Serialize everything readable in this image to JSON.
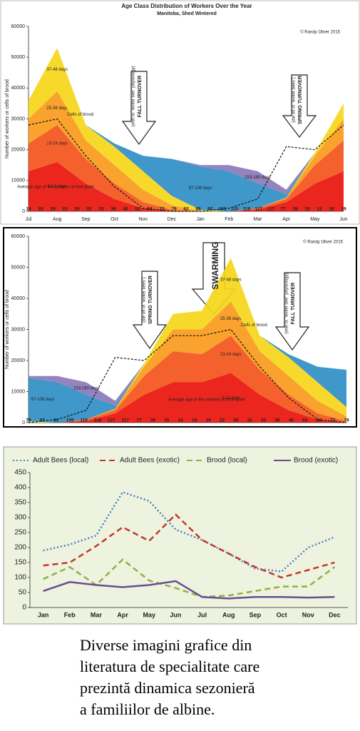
{
  "chart_data": [
    {
      "type": "area",
      "title": "Age Class Distribution of Workers Over the Year",
      "subtitle": "Manitoba, Shed Wintered",
      "copyright": "© Randy Oliver 2015",
      "ylabel": "Number of workers or cells of brood",
      "ylim": [
        0,
        60000
      ],
      "yticks": [
        0,
        10000,
        20000,
        30000,
        40000,
        50000,
        60000
      ],
      "categories": [
        "Jul",
        "Aug",
        "Sep",
        "Oct",
        "Nov",
        "Dec",
        "Jan",
        "Feb",
        "Mar",
        "Apr",
        "May",
        "Jun"
      ],
      "age_row": [
        19,
        20,
        19,
        22,
        26,
        32,
        33,
        36,
        40,
        52,
        64,
        73,
        79,
        82,
        88,
        92,
        103,
        110,
        118,
        127,
        117,
        77,
        38,
        15,
        13,
        18,
        19
      ],
      "series": [
        {
          "name": "0-12 days",
          "color": "#e8130c",
          "values": [
            13000,
            16000,
            9000,
            4000,
            1000,
            0,
            0,
            0,
            500,
            3000,
            9000,
            13000
          ]
        },
        {
          "name": "13-24 days",
          "color": "#f4541a",
          "values": [
            9000,
            12000,
            8000,
            5000,
            2000,
            500,
            0,
            0,
            500,
            1000,
            6000,
            10000
          ]
        },
        {
          "name": "25-36 days",
          "color": "#f99a1c",
          "values": [
            8000,
            11000,
            6000,
            6000,
            4000,
            1500,
            0,
            0,
            0,
            500,
            3000,
            7000
          ]
        },
        {
          "name": "37-48 days",
          "color": "#f6d61a",
          "values": [
            6000,
            14000,
            5000,
            6000,
            6000,
            3000,
            500,
            0,
            0,
            0,
            1000,
            5000
          ]
        },
        {
          "name": "97-108 days",
          "color": "#2f8fc4",
          "values": [
            0,
            0,
            0,
            1000,
            5000,
            12000,
            14000,
            13000,
            8000,
            1000,
            0,
            0
          ]
        },
        {
          "name": "153-180 days",
          "color": "#8a78b8",
          "values": [
            0,
            0,
            0,
            0,
            0,
            0,
            500,
            2000,
            4000,
            1500,
            0,
            0
          ]
        },
        {
          "name": "Cells of brood",
          "kind": "line",
          "color": "#111111",
          "values": [
            28000,
            30000,
            18000,
            8000,
            1000,
            0,
            0,
            1000,
            4000,
            21000,
            20000,
            28000
          ]
        }
      ],
      "annotations": [
        "FALL TURNOVER",
        "(shift to \"winter bee\" physiology)",
        "SPRING TURNOVER",
        "(die off of \"winter bees\")",
        "Average age of the workers at time point"
      ]
    },
    {
      "type": "area",
      "copyright": "© Randy Oliver 2015",
      "ylabel": "Number of workers or cells of brood",
      "ylim": [
        0,
        60000
      ],
      "yticks": [
        0,
        10000,
        20000,
        30000,
        40000,
        50000,
        60000
      ],
      "age_row": [
        79,
        82,
        92,
        105,
        110,
        118,
        127,
        117,
        77,
        38,
        15,
        16,
        18,
        19,
        22,
        26,
        32,
        33,
        36,
        40,
        52,
        64,
        73,
        79
      ],
      "series": [
        {
          "name": "0-12 days",
          "color": "#e8130c",
          "values": [
            0,
            0,
            500,
            3000,
            9000,
            13000,
            13000,
            16000,
            9000,
            4000,
            1000,
            0
          ]
        },
        {
          "name": "13-24 days",
          "color": "#f4541a",
          "values": [
            0,
            0,
            500,
            1000,
            6000,
            10000,
            9000,
            12000,
            8000,
            5000,
            2000,
            500
          ]
        },
        {
          "name": "25-36 days",
          "color": "#f99a1c",
          "values": [
            0,
            0,
            0,
            500,
            3000,
            7000,
            8000,
            11000,
            6000,
            6000,
            4000,
            1500
          ]
        },
        {
          "name": "37-48 days",
          "color": "#f6d61a",
          "values": [
            500,
            0,
            0,
            0,
            1000,
            5000,
            6000,
            14000,
            5000,
            6000,
            6000,
            3000
          ]
        },
        {
          "name": "97-108 days",
          "color": "#2f8fc4",
          "values": [
            14000,
            13000,
            8000,
            1000,
            0,
            0,
            0,
            0,
            0,
            1000,
            5000,
            12000
          ]
        },
        {
          "name": "153-180 days",
          "color": "#8a78b8",
          "values": [
            500,
            2000,
            4000,
            1500,
            0,
            0,
            0,
            0,
            0,
            0,
            0,
            0
          ]
        },
        {
          "name": "Cells of brood",
          "kind": "line",
          "color": "#111111",
          "values": [
            0,
            1000,
            4000,
            21000,
            20000,
            28000,
            28000,
            30000,
            18000,
            8000,
            1000,
            0
          ]
        }
      ],
      "annotations": [
        "SWARMING",
        "SPRING TURNOVER",
        "(die off of \"winter bees\")",
        "FALL TURNOVER",
        "(shift to \"winter bee\" physiology)",
        "Average age of the workers at time point"
      ]
    },
    {
      "type": "line",
      "ylim": [
        0,
        450
      ],
      "yticks": [
        0,
        50,
        100,
        150,
        200,
        250,
        300,
        350,
        400,
        450
      ],
      "categories": [
        "Jan",
        "Feb",
        "Mar",
        "Apr",
        "May",
        "Jun",
        "Jul",
        "Aug",
        "Sep",
        "Oct",
        "Nov",
        "Dec"
      ],
      "series": [
        {
          "name": "Adult Bees (local)",
          "color": "#4a7fc1",
          "dash": "2 3",
          "values": [
            190,
            210,
            240,
            385,
            355,
            260,
            225,
            180,
            130,
            120,
            200,
            235
          ]
        },
        {
          "name": "Adult Bees (exotic)",
          "color": "#c0392b",
          "dash": "8 5",
          "values": [
            140,
            150,
            205,
            268,
            222,
            310,
            225,
            180,
            135,
            100,
            125,
            150
          ]
        },
        {
          "name": "Brood (local)",
          "color": "#8db33f",
          "dash": "8 5",
          "values": [
            95,
            135,
            75,
            160,
            90,
            65,
            35,
            40,
            55,
            70,
            70,
            135
          ]
        },
        {
          "name": "Brood (exotic)",
          "color": "#6a4c93",
          "dash": "",
          "values": [
            55,
            85,
            75,
            68,
            75,
            88,
            35,
            30,
            35,
            35,
            33,
            35
          ]
        }
      ]
    }
  ],
  "caption": [
    "Diverse imagini grafice din",
    "literatura de specialitate care",
    "prezintă dinamica sezonieră",
    "a familiilor de albine."
  ]
}
